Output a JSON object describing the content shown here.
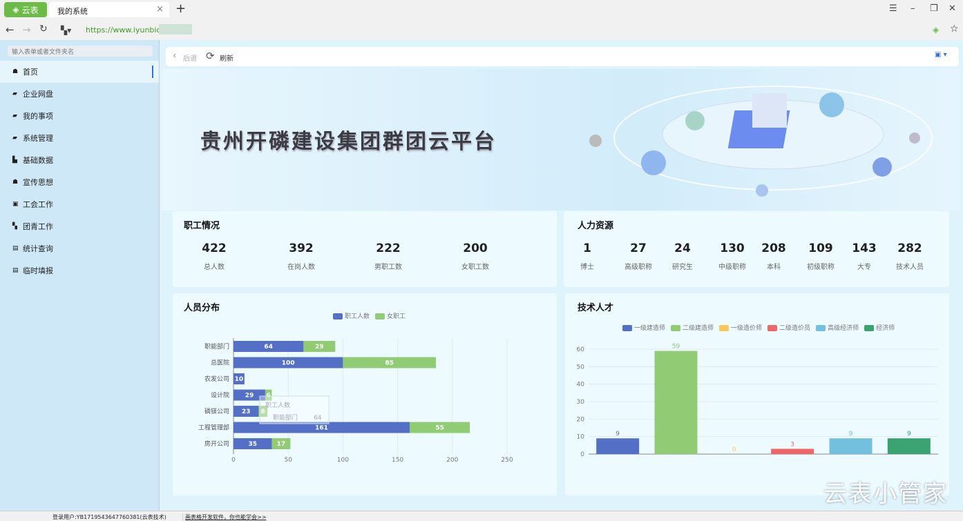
{
  "browser": {
    "brand_label": "云表",
    "tab_title": "我的系统",
    "url": "https://www.iyunbioo.cn",
    "new_tab": "+",
    "close_tab": "×"
  },
  "sidebar": {
    "search_placeholder": "输入表单或者文件夹名",
    "items": [
      {
        "label": "首页",
        "icon": "☗"
      },
      {
        "label": "企业网盘",
        "icon": "▰"
      },
      {
        "label": "我的事项",
        "icon": "▰"
      },
      {
        "label": "系统管理",
        "icon": "▰"
      },
      {
        "label": "基础数据",
        "icon": "▙"
      },
      {
        "label": "宣传思想",
        "icon": "☗"
      },
      {
        "label": "工会工作",
        "icon": "▣"
      },
      {
        "label": "团青工作",
        "icon": "▚"
      },
      {
        "label": "统计查询",
        "icon": "▤"
      },
      {
        "label": "临时填报",
        "icon": "▤"
      }
    ]
  },
  "toolbar": {
    "back": "后退",
    "refresh": "刷新"
  },
  "banner": {
    "title": "贵州开磷建设集团群团云平台"
  },
  "staff": {
    "title": "职工情况",
    "stats": [
      {
        "value": "422",
        "label": "总人数"
      },
      {
        "value": "392",
        "label": "在岗人数"
      },
      {
        "value": "222",
        "label": "男职工数"
      },
      {
        "value": "200",
        "label": "女职工数"
      }
    ]
  },
  "hr": {
    "title": "人力资源",
    "stats": [
      {
        "value": "1",
        "label": "博士"
      },
      {
        "value": "27",
        "label": "高级职称"
      },
      {
        "value": "24",
        "label": "研究生"
      },
      {
        "value": "130",
        "label": "中级职称"
      },
      {
        "value": "208",
        "label": "本科"
      },
      {
        "value": "109",
        "label": "初级职称"
      },
      {
        "value": "143",
        "label": "大专"
      },
      {
        "value": "282",
        "label": "技术人员"
      }
    ]
  },
  "chart_data": [
    {
      "type": "bar",
      "orientation": "horizontal",
      "stacked": true,
      "title": "人员分布",
      "categories": [
        "职能部门",
        "总医院",
        "农发公司",
        "设计院",
        "磷镁公司",
        "工程管理部",
        "房开公司"
      ],
      "series": [
        {
          "name": "职工人数",
          "color": "#5470c6",
          "values": [
            64,
            100,
            10,
            29,
            23,
            161,
            35
          ]
        },
        {
          "name": "女职工",
          "color": "#91cc75",
          "values": [
            29,
            85,
            0,
            6,
            8,
            55,
            17
          ]
        }
      ],
      "xlim": [
        0,
        250
      ],
      "xticks": [
        0,
        50,
        100,
        150,
        200,
        250
      ],
      "grid": true,
      "legend": "top-center",
      "tooltip": {
        "series": "职工人数",
        "category": "职能部门",
        "value": "64"
      }
    },
    {
      "type": "bar",
      "title": "技术人才",
      "series": [
        {
          "name": "一级建造师",
          "color": "#5470c6",
          "value": 9
        },
        {
          "name": "二级建造师",
          "color": "#91cc75",
          "value": 59
        },
        {
          "name": "一级造价师",
          "color": "#fac858",
          "value": 0
        },
        {
          "name": "二级造价员",
          "color": "#ee6666",
          "value": 3
        },
        {
          "name": "高级经济师",
          "color": "#73c0de",
          "value": 9
        },
        {
          "name": "经济师",
          "color": "#3ba272",
          "value": 9
        }
      ],
      "ylim": [
        0,
        60
      ],
      "yticks": [
        0,
        10,
        20,
        30,
        40,
        50,
        60
      ],
      "grid": true,
      "legend": "top-center"
    }
  ],
  "status": {
    "user": "登录用户:YB1719543647760381(云表技术)",
    "link": "画表格开发软件，你也能学会>>"
  },
  "watermark": "云表小管家"
}
